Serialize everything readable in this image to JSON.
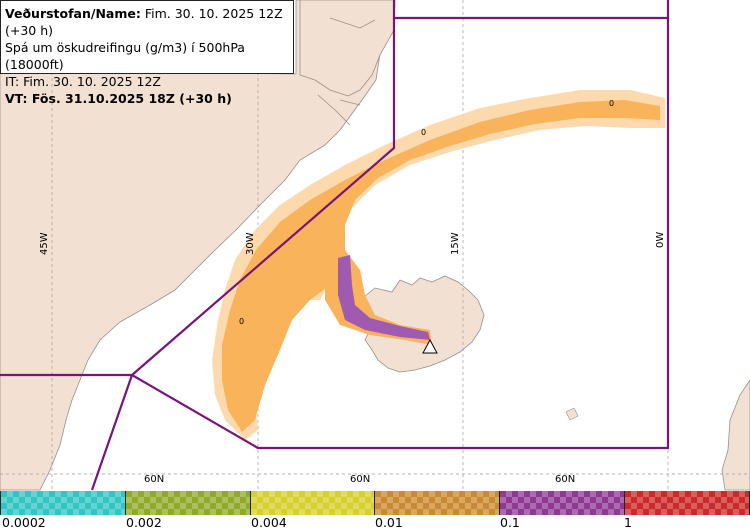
{
  "info": {
    "line1_label": "Veðurstofan/Name:",
    "line1_value": "Fim. 30. 10. 2025 12Z (+30 h)",
    "line2": "Spá um öskudreifingu (g/m3) í 500hPa (18000ft)",
    "line3": "IT: Fim. 30. 10. 2025 12Z",
    "line4_label": "VT:",
    "line4_value": "Fös. 31.10.2025 18Z (+30 h)"
  },
  "grid_labels": {
    "lon": [
      "45W",
      "30W",
      "15W",
      "0W"
    ],
    "lat": [
      "60N",
      "60N",
      "60N"
    ]
  },
  "contour_labels": [
    "0",
    "0",
    "0"
  ],
  "legend": {
    "ticks": [
      "0.0002",
      "0.002",
      "0.004",
      "0.01",
      "0.1",
      "1"
    ],
    "colors": [
      "#33c4c4",
      "#8fa928",
      "#d5d02c",
      "#cc8a30",
      "#8e3a94",
      "#cc2a2a"
    ]
  },
  "colors": {
    "land": "#f2e1d3",
    "sea": "#ffffff",
    "boundary": "#7a137a",
    "plume_light": "#fbd3a0",
    "plume_main": "#f9b35a",
    "plume_core": "#a05bb0"
  }
}
